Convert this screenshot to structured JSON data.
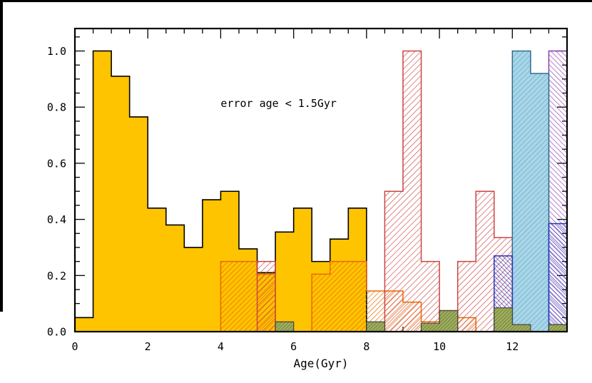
{
  "page": {
    "background": "#ffffff",
    "frame_color": "#000000"
  },
  "chart_data": {
    "type": "bar",
    "subtype": "overlaid-step-histograms",
    "title": "",
    "xlabel": "Age(Gyr)",
    "ylabel": "",
    "xlim": [
      0,
      13.5
    ],
    "ylim": [
      0,
      1.08
    ],
    "grid": false,
    "legend": null,
    "x_ticks": [
      0,
      2,
      4,
      6,
      8,
      10,
      12
    ],
    "x_tick_labels": [
      "0",
      "2",
      "4",
      "6",
      "8",
      "10",
      "12"
    ],
    "x_minor_step": 0.5,
    "y_ticks": [
      0.0,
      0.2,
      0.4,
      0.6,
      0.8,
      1.0
    ],
    "y_tick_labels": [
      "0.0",
      "0.2",
      "0.4",
      "0.6",
      "0.8",
      "1.0"
    ],
    "y_minor_step": 0.05,
    "annotation": {
      "text": "error age < 1.5Gyr",
      "x": 4.0,
      "y": 0.8
    },
    "bin_start": 0,
    "bin_width": 0.5,
    "series": [
      {
        "id": "gold-solid-histogram",
        "fill_color": "#FFC400",
        "outline_color": "#000000",
        "outline_width": 1.6,
        "values": [
          0.05,
          1.0,
          0.91,
          0.765,
          0.44,
          0.38,
          0.3,
          0.47,
          0.5,
          0.295,
          0.21,
          0.355,
          0.44,
          0.25,
          0.33,
          0.44,
          0,
          0,
          0,
          0,
          0,
          0,
          0,
          0,
          0,
          0,
          0
        ]
      },
      {
        "id": "orange-hatch-histogram",
        "hatch": {
          "angle": 45,
          "spacing": 5,
          "width": 1.4,
          "color": "#E86A00"
        },
        "outline_color": "#E86A00",
        "outline_width": 1.5,
        "values": [
          0,
          0,
          0,
          0,
          0,
          0,
          0,
          0,
          0.25,
          0.25,
          0.205,
          0,
          0,
          0.205,
          0.25,
          0.25,
          0.145,
          0.145,
          0.105,
          0.035,
          0.075,
          0.05,
          0,
          0,
          0,
          0,
          0.025
        ]
      },
      {
        "id": "red-hatch-histogram",
        "hatch": {
          "angle": 45,
          "spacing": 6,
          "width": 1.3,
          "color": "#CC4444"
        },
        "outline_color": "#CC4444",
        "outline_width": 1.5,
        "values": [
          0,
          0,
          0,
          0,
          0,
          0,
          0,
          0,
          0,
          0,
          0.25,
          0,
          0,
          0,
          0,
          0,
          0,
          0.5,
          1.0,
          0.25,
          0,
          0.25,
          0.5,
          0.335,
          0,
          0,
          0
        ]
      },
      {
        "id": "purple-hatch-histogram",
        "hatch": {
          "angle": -45,
          "spacing": 5,
          "width": 1.3,
          "color": "#8A3FB0"
        },
        "outline_color": "#8A3FB0",
        "outline_width": 1.5,
        "values": [
          0,
          0,
          0,
          0,
          0,
          0,
          0,
          0,
          0,
          0,
          0,
          0,
          0,
          0,
          0,
          0,
          0,
          0,
          0,
          0,
          0,
          0,
          0,
          0,
          0,
          0,
          1.0
        ]
      },
      {
        "id": "lightblue-solid-hatch-histogram",
        "fill_color": "#A9D6E8",
        "hatch": {
          "angle": 45,
          "spacing": 5,
          "width": 1.2,
          "color": "#5FA3C4"
        },
        "outline_color": "#2E6E8E",
        "outline_width": 1.5,
        "values": [
          0,
          0,
          0,
          0,
          0,
          0,
          0,
          0,
          0,
          0,
          0,
          0,
          0,
          0,
          0,
          0,
          0,
          0,
          0,
          0,
          0,
          0,
          0,
          0,
          1.0,
          0.92,
          0
        ]
      },
      {
        "id": "darkblue-hatch-histogram",
        "hatch": {
          "angle": -45,
          "spacing": 4,
          "width": 1.3,
          "color": "#2A35B8"
        },
        "outline_color": "#2A35B8",
        "outline_width": 1.5,
        "values": [
          0,
          0,
          0,
          0,
          0,
          0,
          0,
          0,
          0,
          0,
          0,
          0,
          0,
          0,
          0,
          0,
          0,
          0,
          0,
          0,
          0,
          0,
          0,
          0.27,
          0,
          0,
          0.385
        ]
      },
      {
        "id": "green-hatch-histogram",
        "fill_color": "#9FAE5C",
        "hatch": {
          "angle": 45,
          "spacing": 3.5,
          "width": 1.1,
          "color": "#55622A"
        },
        "outline_color": "#444444",
        "outline_width": 1.2,
        "values": [
          0,
          0,
          0,
          0,
          0,
          0,
          0,
          0,
          0,
          0,
          0,
          0.035,
          0,
          0,
          0,
          0,
          0.035,
          0,
          0,
          0.03,
          0.075,
          0,
          0,
          0.085,
          0.025,
          0,
          0.025
        ]
      }
    ]
  }
}
